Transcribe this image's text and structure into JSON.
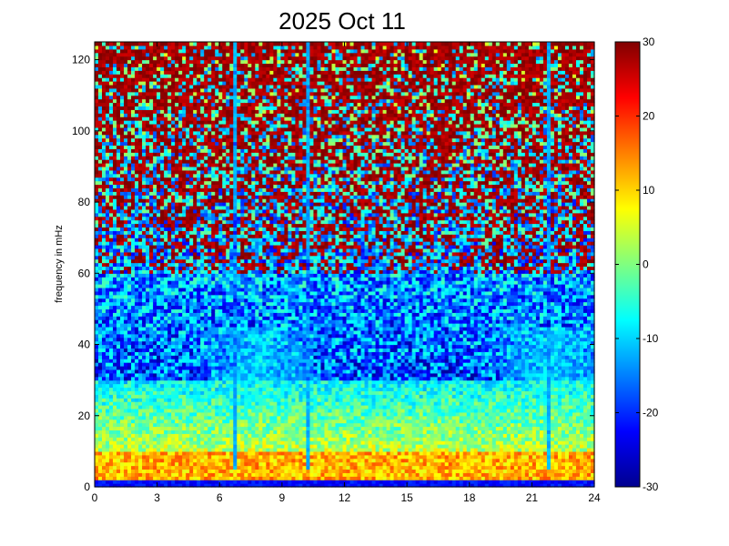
{
  "chart_data": {
    "type": "heatmap",
    "title": "2025 Oct 11",
    "xlabel": "",
    "ylabel": "frequency in mHz",
    "xlim": [
      0,
      24
    ],
    "ylim": [
      0,
      125
    ],
    "x_ticks": [
      0,
      3,
      6,
      9,
      12,
      15,
      18,
      21,
      24
    ],
    "y_ticks": [
      0,
      20,
      40,
      60,
      80,
      100,
      120
    ],
    "colorbar": {
      "min": -30,
      "max": 30,
      "ticks": [
        -30,
        -20,
        -10,
        0,
        10,
        20,
        30
      ],
      "colormap": "jet"
    },
    "grid": false,
    "colors": {
      "jet_stops": [
        "#00008f",
        "#0000ff",
        "#00ffff",
        "#ffff00",
        "#ff0000",
        "#800000"
      ]
    },
    "features": {
      "low_frequency_band_mhz": [
        2,
        10
      ],
      "low_frequency_band_level": 12,
      "baseline_band_mhz": [
        0,
        2
      ],
      "background_level_low": -22,
      "high_frequency_noise_level": 25,
      "vertical_streaks_hours": [
        6.7,
        10.2,
        21.8
      ],
      "activity_peak_hours": [
        8,
        22
      ]
    }
  }
}
